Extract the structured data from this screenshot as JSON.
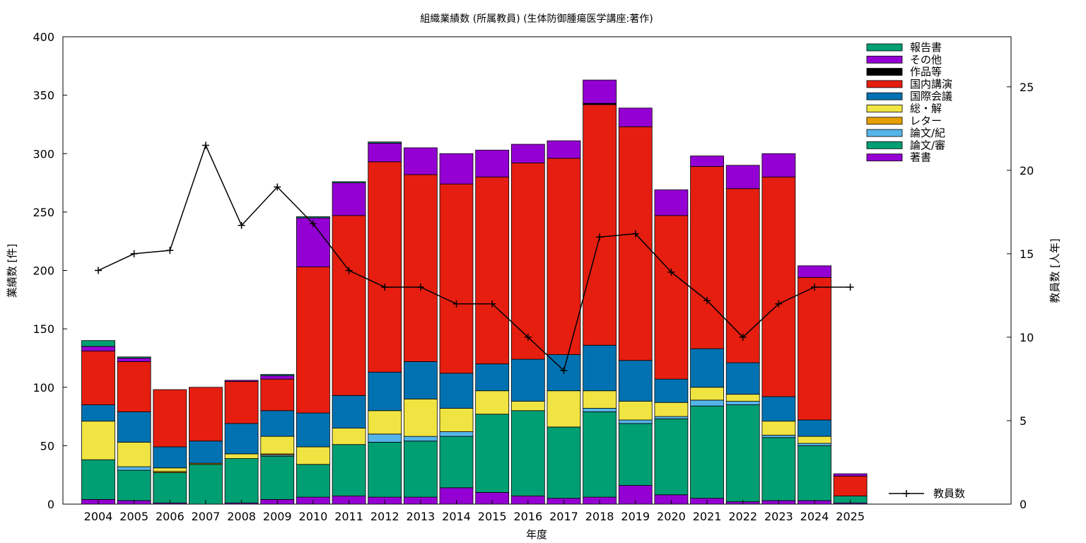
{
  "chart_data": {
    "type": "bar",
    "stacked": true,
    "title": "組織業績数 (所属教員) (生体防御腫瘍医学講座:著作)",
    "xlabel": "年度",
    "ylabel": "業績数 [件]",
    "y2label": "教員数 [人年]",
    "ylim": [
      0,
      400
    ],
    "y2lim": [
      0,
      28
    ],
    "yticks": [
      0,
      50,
      100,
      150,
      200,
      250,
      300,
      350,
      400
    ],
    "y2ticks": [
      0,
      5,
      10,
      15,
      20,
      25
    ],
    "categories": [
      "2004",
      "2005",
      "2006",
      "2007",
      "2008",
      "2009",
      "2010",
      "2011",
      "2012",
      "2013",
      "2014",
      "2015",
      "2016",
      "2017",
      "2018",
      "2019",
      "2020",
      "2021",
      "2022",
      "2023",
      "2024",
      "2025"
    ],
    "series": [
      {
        "name": "著書",
        "color": "#9400d3",
        "values": [
          4,
          3,
          1,
          0,
          1,
          4,
          6,
          7,
          6,
          6,
          14,
          10,
          7,
          5,
          6,
          16,
          8,
          5,
          2,
          3,
          3,
          1
        ]
      },
      {
        "name": "論文/審",
        "color": "#009e73",
        "values": [
          34,
          26,
          26,
          34,
          38,
          37,
          28,
          44,
          47,
          48,
          44,
          67,
          73,
          61,
          73,
          53,
          65,
          79,
          83,
          54,
          47,
          6
        ]
      },
      {
        "name": "論文/紀",
        "color": "#56b4e9",
        "values": [
          0,
          3,
          0,
          0,
          0,
          1,
          0,
          0,
          7,
          4,
          4,
          0,
          0,
          0,
          3,
          3,
          2,
          5,
          3,
          2,
          2,
          0
        ]
      },
      {
        "name": "レター",
        "color": "#e69f00",
        "values": [
          0,
          0,
          1,
          1,
          0,
          1,
          0,
          0,
          0,
          0,
          0,
          0,
          0,
          0,
          0,
          0,
          0,
          0,
          0,
          0,
          0,
          0
        ]
      },
      {
        "name": "総・解",
        "color": "#f0e442",
        "values": [
          33,
          21,
          3,
          0,
          4,
          15,
          15,
          14,
          20,
          32,
          20,
          20,
          8,
          31,
          15,
          16,
          12,
          11,
          6,
          12,
          6,
          0
        ]
      },
      {
        "name": "国際会議",
        "color": "#0072b2",
        "values": [
          14,
          26,
          18,
          19,
          26,
          22,
          29,
          28,
          33,
          32,
          30,
          23,
          36,
          31,
          39,
          35,
          20,
          33,
          27,
          21,
          14,
          0
        ]
      },
      {
        "name": "国内講演",
        "color": "#e51e10",
        "values": [
          46,
          43,
          49,
          46,
          36,
          27,
          125,
          154,
          180,
          160,
          162,
          160,
          168,
          168,
          206,
          200,
          140,
          156,
          149,
          188,
          122,
          17
        ]
      },
      {
        "name": "作品等",
        "color": "#000000",
        "values": [
          0,
          0,
          0,
          0,
          0,
          0,
          0,
          0,
          0,
          0,
          0,
          0,
          0,
          0,
          1,
          0,
          0,
          0,
          0,
          0,
          0,
          0
        ]
      },
      {
        "name": "その他",
        "color": "#9400d3",
        "values": [
          4,
          3,
          0,
          0,
          1,
          3,
          42,
          28,
          16,
          23,
          26,
          23,
          16,
          15,
          20,
          16,
          22,
          9,
          20,
          20,
          10,
          2
        ]
      },
      {
        "name": "報告書",
        "color": "#009e73",
        "values": [
          5,
          1,
          0,
          0,
          0,
          1,
          1,
          1,
          1,
          0,
          0,
          0,
          0,
          0,
          0,
          0,
          0,
          0,
          0,
          0,
          0,
          0
        ]
      }
    ],
    "line": {
      "name": "教員数",
      "color": "#000000",
      "axis": "y2",
      "values": [
        14.0,
        15.0,
        15.2,
        21.5,
        16.7,
        19.0,
        16.8,
        14.0,
        13.0,
        13.0,
        12.0,
        12.0,
        10.0,
        8.0,
        16.0,
        16.2,
        13.9,
        12.2,
        10.0,
        12.0,
        13.0,
        13.0
      ]
    },
    "legend": "top-right",
    "grid": false
  }
}
